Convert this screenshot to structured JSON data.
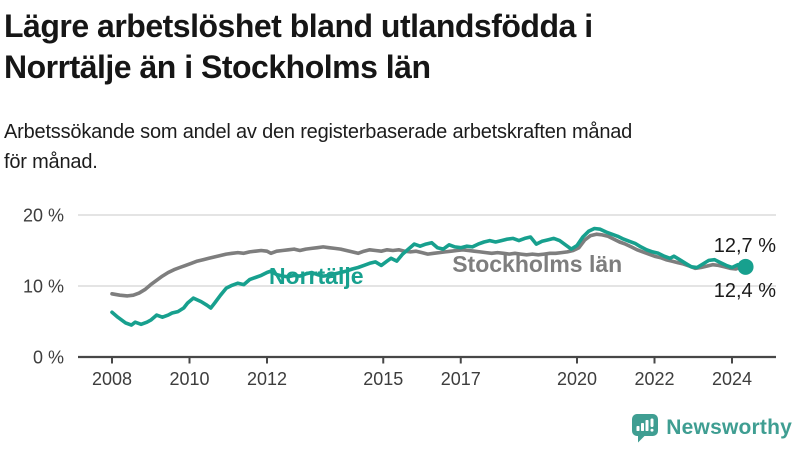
{
  "header": {
    "title_line1": "Lägre arbetslöshet bland utlandsfödda i",
    "title_line2": "Norrtälje än i Stockholms län",
    "subtitle_line1": "Arbetssökande som andel av den registerbaserade arbetskraften månad",
    "subtitle_line2": "för månad."
  },
  "branding": {
    "wordmark": "Newsworthy",
    "logo_icon": "newsworthy-speech-bubble-bar-chart-icon",
    "color": "#3f9e92"
  },
  "chart_data": {
    "type": "line",
    "title": "Lägre arbetslöshet bland utlandsfödda i Norrtälje än i Stockholms län",
    "subtitle": "Arbetssökande som andel av den registerbaserade arbetskraften månad för månad.",
    "x_unit": "decimal_year_monthly",
    "xlim": [
      2008.0,
      2024.5
    ],
    "ylim": [
      0,
      20
    ],
    "grid": "horizontal",
    "legend_position": "inline-labels",
    "colors": {
      "grid": "#dcdcdc",
      "axis": "#474747",
      "tick_text": "#3d3d3d",
      "value_label_text": "#1a1a1a"
    },
    "y_ticks": [
      {
        "value": 20,
        "label": "20 %"
      },
      {
        "value": 10,
        "label": "10 %"
      },
      {
        "value": 0,
        "label": "0 %"
      }
    ],
    "x_ticks": [
      {
        "value": 2008,
        "label": "2008"
      },
      {
        "value": 2010,
        "label": "2010"
      },
      {
        "value": 2012,
        "label": "2012"
      },
      {
        "value": 2015,
        "label": "2015"
      },
      {
        "value": 2017,
        "label": "2017"
      },
      {
        "value": 2020,
        "label": "2020"
      },
      {
        "value": 2022,
        "label": "2022"
      },
      {
        "value": 2024,
        "label": "2024"
      }
    ],
    "inline_labels": [
      {
        "text": "Norrtälje",
        "x": 2012.05,
        "y": 10.3,
        "color": "#17a08e"
      },
      {
        "text": "Stockholms län",
        "x": 2016.78,
        "y": 11.95,
        "color": "#7e7e7e"
      }
    ],
    "series": [
      {
        "name": "Norrtälje",
        "color": "#17a08e",
        "end_label": "12,7 %",
        "end_value": 12.7,
        "end_dot": true,
        "points": [
          [
            2008.0,
            6.3
          ],
          [
            2008.15,
            5.6
          ],
          [
            2008.35,
            4.8
          ],
          [
            2008.5,
            4.5
          ],
          [
            2008.6,
            4.9
          ],
          [
            2008.75,
            4.6
          ],
          [
            2008.9,
            4.9
          ],
          [
            2009.0,
            5.2
          ],
          [
            2009.15,
            5.9
          ],
          [
            2009.3,
            5.6
          ],
          [
            2009.45,
            5.9
          ],
          [
            2009.55,
            6.2
          ],
          [
            2009.7,
            6.4
          ],
          [
            2009.85,
            6.9
          ],
          [
            2009.95,
            7.6
          ],
          [
            2010.1,
            8.3
          ],
          [
            2010.3,
            7.8
          ],
          [
            2010.45,
            7.3
          ],
          [
            2010.55,
            6.9
          ],
          [
            2010.65,
            7.6
          ],
          [
            2010.8,
            8.7
          ],
          [
            2010.95,
            9.7
          ],
          [
            2011.1,
            10.1
          ],
          [
            2011.25,
            10.4
          ],
          [
            2011.4,
            10.2
          ],
          [
            2011.55,
            10.9
          ],
          [
            2011.7,
            11.2
          ],
          [
            2011.85,
            11.5
          ],
          [
            2012.0,
            11.9
          ],
          [
            2012.1,
            12.1
          ],
          [
            2012.25,
            11.6
          ],
          [
            2012.4,
            11.4
          ],
          [
            2012.55,
            11.3
          ],
          [
            2012.7,
            11.5
          ],
          [
            2012.85,
            11.4
          ],
          [
            2013.0,
            11.7
          ],
          [
            2013.15,
            11.9
          ],
          [
            2013.3,
            11.6
          ],
          [
            2013.45,
            11.4
          ],
          [
            2013.6,
            11.5
          ],
          [
            2013.75,
            11.7
          ],
          [
            2013.9,
            11.9
          ],
          [
            2014.05,
            12.1
          ],
          [
            2014.2,
            12.4
          ],
          [
            2014.35,
            12.6
          ],
          [
            2014.5,
            12.9
          ],
          [
            2014.65,
            13.2
          ],
          [
            2014.8,
            13.4
          ],
          [
            2014.95,
            12.9
          ],
          [
            2015.1,
            13.5
          ],
          [
            2015.2,
            13.9
          ],
          [
            2015.35,
            13.5
          ],
          [
            2015.5,
            14.5
          ],
          [
            2015.65,
            15.2
          ],
          [
            2015.8,
            15.9
          ],
          [
            2015.95,
            15.6
          ],
          [
            2016.1,
            15.9
          ],
          [
            2016.25,
            16.1
          ],
          [
            2016.4,
            15.4
          ],
          [
            2016.55,
            15.2
          ],
          [
            2016.7,
            15.8
          ],
          [
            2016.85,
            15.5
          ],
          [
            2017.0,
            15.4
          ],
          [
            2017.15,
            15.6
          ],
          [
            2017.3,
            15.5
          ],
          [
            2017.45,
            15.9
          ],
          [
            2017.6,
            16.2
          ],
          [
            2017.75,
            16.4
          ],
          [
            2017.9,
            16.2
          ],
          [
            2018.05,
            16.4
          ],
          [
            2018.2,
            16.6
          ],
          [
            2018.35,
            16.7
          ],
          [
            2018.5,
            16.4
          ],
          [
            2018.65,
            16.7
          ],
          [
            2018.8,
            16.9
          ],
          [
            2018.95,
            15.9
          ],
          [
            2019.1,
            16.3
          ],
          [
            2019.25,
            16.5
          ],
          [
            2019.4,
            16.7
          ],
          [
            2019.55,
            16.4
          ],
          [
            2019.7,
            15.8
          ],
          [
            2019.85,
            15.2
          ],
          [
            2020.0,
            15.7
          ],
          [
            2020.15,
            16.9
          ],
          [
            2020.3,
            17.7
          ],
          [
            2020.45,
            18.1
          ],
          [
            2020.6,
            18.0
          ],
          [
            2020.75,
            17.6
          ],
          [
            2020.9,
            17.3
          ],
          [
            2021.05,
            17.0
          ],
          [
            2021.2,
            16.6
          ],
          [
            2021.35,
            16.3
          ],
          [
            2021.5,
            16.0
          ],
          [
            2021.65,
            15.5
          ],
          [
            2021.8,
            15.1
          ],
          [
            2021.95,
            14.8
          ],
          [
            2022.1,
            14.6
          ],
          [
            2022.25,
            14.2
          ],
          [
            2022.4,
            13.9
          ],
          [
            2022.5,
            14.2
          ],
          [
            2022.65,
            13.7
          ],
          [
            2022.8,
            13.2
          ],
          [
            2022.95,
            12.7
          ],
          [
            2023.1,
            12.6
          ],
          [
            2023.25,
            13.1
          ],
          [
            2023.4,
            13.6
          ],
          [
            2023.55,
            13.7
          ],
          [
            2023.7,
            13.3
          ],
          [
            2023.85,
            12.9
          ],
          [
            2024.0,
            12.6
          ],
          [
            2024.15,
            13.0
          ],
          [
            2024.35,
            12.7
          ]
        ]
      },
      {
        "name": "Stockholms län",
        "color": "#7e7e7e",
        "end_label": "12,4 %",
        "end_value": 12.4,
        "end_dot": false,
        "points": [
          [
            2008.0,
            8.9
          ],
          [
            2008.2,
            8.7
          ],
          [
            2008.4,
            8.6
          ],
          [
            2008.55,
            8.7
          ],
          [
            2008.7,
            9.0
          ],
          [
            2008.85,
            9.5
          ],
          [
            2009.0,
            10.2
          ],
          [
            2009.15,
            10.8
          ],
          [
            2009.3,
            11.4
          ],
          [
            2009.45,
            11.9
          ],
          [
            2009.6,
            12.3
          ],
          [
            2009.75,
            12.6
          ],
          [
            2009.9,
            12.9
          ],
          [
            2010.05,
            13.2
          ],
          [
            2010.2,
            13.5
          ],
          [
            2010.35,
            13.7
          ],
          [
            2010.5,
            13.9
          ],
          [
            2010.65,
            14.1
          ],
          [
            2010.8,
            14.3
          ],
          [
            2010.95,
            14.5
          ],
          [
            2011.1,
            14.6
          ],
          [
            2011.25,
            14.7
          ],
          [
            2011.4,
            14.6
          ],
          [
            2011.55,
            14.8
          ],
          [
            2011.7,
            14.9
          ],
          [
            2011.85,
            15.0
          ],
          [
            2012.0,
            14.9
          ],
          [
            2012.1,
            14.6
          ],
          [
            2012.25,
            14.9
          ],
          [
            2012.4,
            15.0
          ],
          [
            2012.55,
            15.1
          ],
          [
            2012.7,
            15.2
          ],
          [
            2012.85,
            15.0
          ],
          [
            2013.0,
            15.2
          ],
          [
            2013.15,
            15.3
          ],
          [
            2013.3,
            15.4
          ],
          [
            2013.45,
            15.5
          ],
          [
            2013.6,
            15.4
          ],
          [
            2013.75,
            15.3
          ],
          [
            2013.9,
            15.2
          ],
          [
            2014.05,
            15.0
          ],
          [
            2014.2,
            14.8
          ],
          [
            2014.35,
            14.6
          ],
          [
            2014.5,
            14.9
          ],
          [
            2014.65,
            15.1
          ],
          [
            2014.8,
            15.0
          ],
          [
            2014.95,
            14.9
          ],
          [
            2015.1,
            15.1
          ],
          [
            2015.25,
            15.0
          ],
          [
            2015.4,
            15.1
          ],
          [
            2015.55,
            14.9
          ],
          [
            2015.7,
            14.8
          ],
          [
            2015.85,
            14.9
          ],
          [
            2016.0,
            14.7
          ],
          [
            2016.15,
            14.5
          ],
          [
            2016.3,
            14.6
          ],
          [
            2016.45,
            14.7
          ],
          [
            2016.6,
            14.8
          ],
          [
            2016.75,
            14.9
          ],
          [
            2016.9,
            15.0
          ],
          [
            2017.05,
            15.1
          ],
          [
            2017.2,
            15.0
          ],
          [
            2017.35,
            14.9
          ],
          [
            2017.5,
            14.8
          ],
          [
            2017.65,
            14.7
          ],
          [
            2017.8,
            14.6
          ],
          [
            2017.95,
            14.7
          ],
          [
            2018.1,
            14.6
          ],
          [
            2018.25,
            14.5
          ],
          [
            2018.4,
            14.6
          ],
          [
            2018.55,
            14.5
          ],
          [
            2018.7,
            14.4
          ],
          [
            2018.85,
            14.5
          ],
          [
            2019.0,
            14.4
          ],
          [
            2019.15,
            14.5
          ],
          [
            2019.3,
            14.6
          ],
          [
            2019.45,
            14.6
          ],
          [
            2019.6,
            14.7
          ],
          [
            2019.75,
            14.8
          ],
          [
            2019.9,
            15.0
          ],
          [
            2020.05,
            15.4
          ],
          [
            2020.2,
            16.5
          ],
          [
            2020.35,
            17.1
          ],
          [
            2020.5,
            17.3
          ],
          [
            2020.65,
            17.2
          ],
          [
            2020.8,
            17.0
          ],
          [
            2020.95,
            16.6
          ],
          [
            2021.1,
            16.2
          ],
          [
            2021.25,
            15.9
          ],
          [
            2021.4,
            15.5
          ],
          [
            2021.55,
            15.1
          ],
          [
            2021.7,
            14.8
          ],
          [
            2021.85,
            14.5
          ],
          [
            2022.0,
            14.2
          ],
          [
            2022.15,
            14.0
          ],
          [
            2022.3,
            13.7
          ],
          [
            2022.45,
            13.5
          ],
          [
            2022.6,
            13.3
          ],
          [
            2022.75,
            13.1
          ],
          [
            2022.9,
            12.8
          ],
          [
            2023.05,
            12.5
          ],
          [
            2023.2,
            12.6
          ],
          [
            2023.35,
            12.8
          ],
          [
            2023.5,
            13.0
          ],
          [
            2023.65,
            12.9
          ],
          [
            2023.8,
            12.7
          ],
          [
            2023.95,
            12.5
          ],
          [
            2024.1,
            12.4
          ],
          [
            2024.2,
            12.6
          ],
          [
            2024.35,
            12.4
          ]
        ]
      }
    ]
  }
}
